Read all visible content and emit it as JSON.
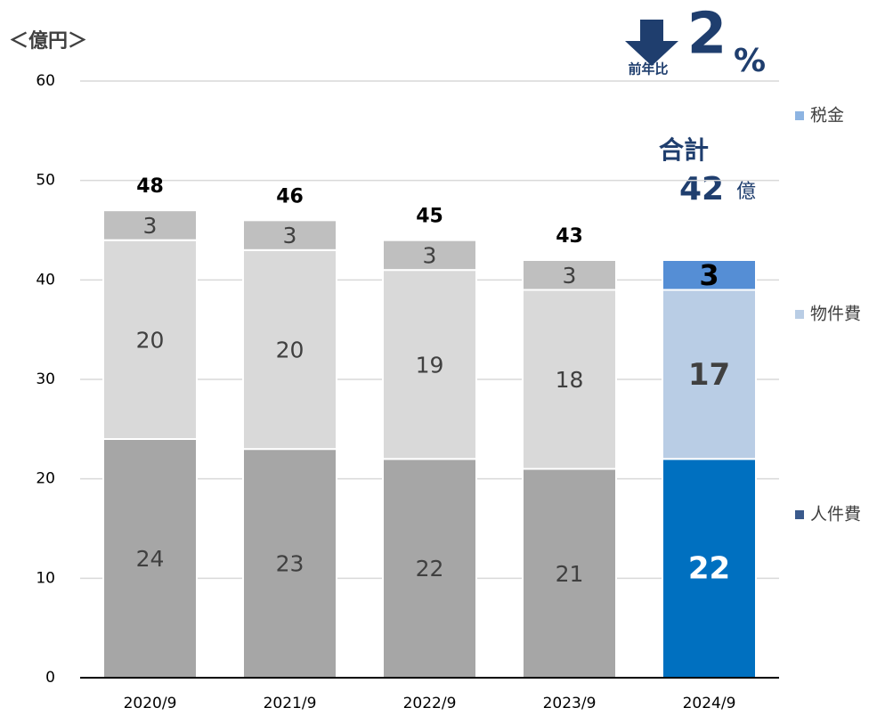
{
  "chart_data": {
    "type": "stacked_bar",
    "unit_label": "＜億円＞",
    "categories": [
      "2020/9",
      "2021/9",
      "2022/9",
      "2023/9",
      "2024/9"
    ],
    "series": [
      {
        "name": "人件費",
        "color": "#a6a6a6",
        "highlight_color": "#0070c0",
        "legend_color": "#3a5a8c",
        "values": [
          24,
          23,
          22,
          21,
          22
        ]
      },
      {
        "name": "物件費",
        "color": "#d9d9d9",
        "highlight_color": "#b9cde5",
        "legend_color": "#b9cde5",
        "values": [
          20,
          20,
          19,
          18,
          17
        ]
      },
      {
        "name": "税金",
        "color": "#bfbfbf",
        "highlight_color": "#558ed5",
        "legend_color": "#8db4e2",
        "values": [
          3,
          3,
          3,
          3,
          3
        ]
      }
    ],
    "highlight_index": 4,
    "totals": [
      48,
      46,
      45,
      43
    ],
    "total_annotation": {
      "label": "合計",
      "value": 42,
      "unit": "億"
    },
    "change_annotation": {
      "label": "前年比",
      "value": 2,
      "unit": "%"
    },
    "ylim": [
      0,
      60
    ],
    "yticks": [
      0,
      10,
      20,
      30,
      40,
      50,
      60
    ],
    "grid": true
  }
}
